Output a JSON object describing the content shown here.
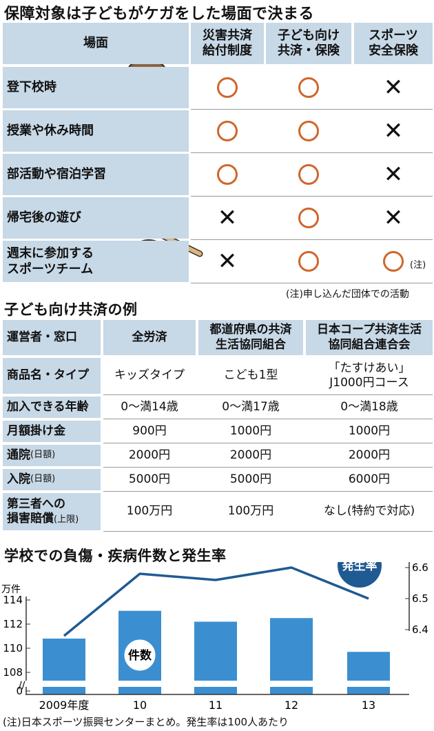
{
  "section1": {
    "title": "保障対象は子どもがケガをした場面で決まる",
    "headers": [
      "場面",
      "災害共済\n給付制度",
      "子ども向け\n共済・保険",
      "スポーツ\n安全保険"
    ],
    "rows": [
      {
        "scene": "登下校時",
        "marks": [
          "o",
          "o",
          "x"
        ]
      },
      {
        "scene": "授業や休み時間",
        "marks": [
          "o",
          "o",
          "x"
        ]
      },
      {
        "scene": "部活動や宿泊学習",
        "marks": [
          "o",
          "o",
          "x"
        ]
      },
      {
        "scene": "帰宅後の遊び",
        "marks": [
          "x",
          "o",
          "x"
        ]
      },
      {
        "scene": "週末に参加する\nスポーツチーム",
        "marks": [
          "x",
          "o",
          "o"
        ]
      }
    ],
    "inline_note": "(注)",
    "footnote": "(注)申し込んだ団体での活動"
  },
  "section2": {
    "title": "子ども向け共済の例",
    "headers": [
      "運営者・窓口",
      "全労済",
      "都道府県の共済\n生活協同組合",
      "日本コープ共済生活\n協同組合連合会"
    ],
    "rows": [
      {
        "label": "商品名・タイプ",
        "sub": "",
        "values": [
          "キッズタイプ",
          "こども1型",
          "「たすけあい」\nJ1000円コース"
        ]
      },
      {
        "label": "加入できる年齢",
        "sub": "",
        "values": [
          "0〜満14歳",
          "0〜満17歳",
          "0〜満18歳"
        ]
      },
      {
        "label": "月額掛け金",
        "sub": "",
        "values": [
          "900円",
          "1000円",
          "1000円"
        ]
      },
      {
        "label": "通院",
        "sub": "(日額)",
        "values": [
          "2000円",
          "2000円",
          "2000円"
        ]
      },
      {
        "label": "入院",
        "sub": "(日額)",
        "values": [
          "5000円",
          "5000円",
          "6000円"
        ]
      },
      {
        "label": "第三者への\n損害賠償",
        "sub": "(上限)",
        "values": [
          "100万円",
          "100万円",
          "なし(特約で対応)"
        ]
      }
    ]
  },
  "chart_data": {
    "type": "bar",
    "title": "学校での負傷・疾病件数と発生率",
    "categories": [
      "2009年度",
      "10",
      "11",
      "12",
      "13"
    ],
    "series": [
      {
        "name": "件数",
        "type": "bar",
        "axis": "left",
        "values": [
          110.8,
          113.1,
          112.2,
          112.5,
          109.7
        ],
        "color": "#3b8fd0"
      },
      {
        "name": "発生率",
        "type": "line",
        "axis": "right",
        "values": [
          6.38,
          6.58,
          6.56,
          6.6,
          6.5
        ],
        "color": "#1f5a93"
      }
    ],
    "left_axis": {
      "unit": "万件",
      "ticks": [
        0,
        108,
        110,
        112,
        114
      ],
      "broken": true
    },
    "right_axis": {
      "unit": "%",
      "ticks": [
        6.4,
        6.5,
        6.6
      ]
    },
    "source_note": "(注)日本スポーツ振興センターまとめ。発生率は100人あたり"
  },
  "colors": {
    "header_bg": "#c7d8e6",
    "circle": "#d0652a",
    "bar": "#3b8fd0",
    "line": "#1f5a93"
  }
}
